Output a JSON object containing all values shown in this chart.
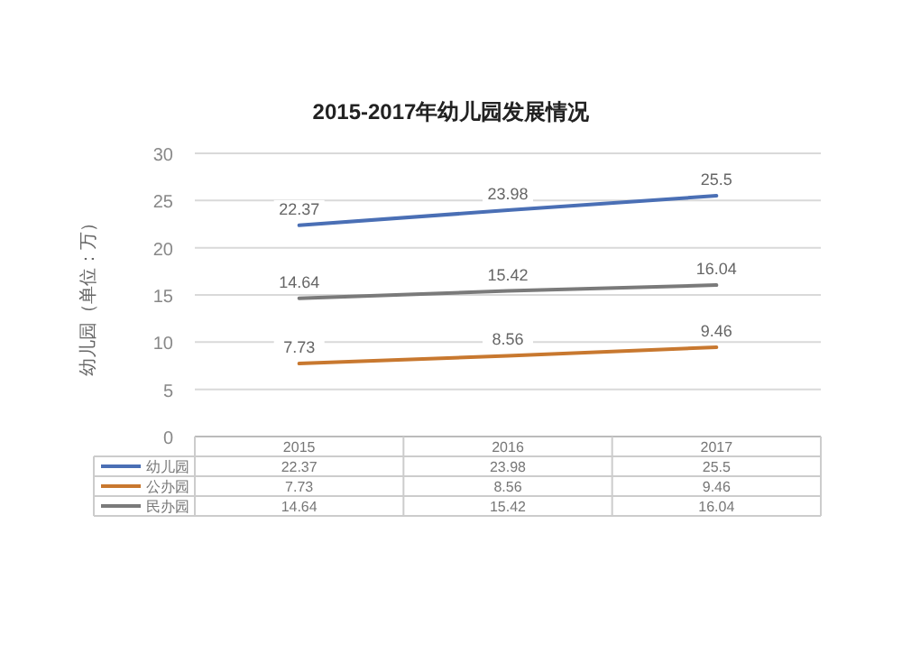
{
  "chart_data": {
    "type": "line",
    "title": "2015-2017年幼儿园发展情况",
    "ylabel": "幼儿园（单位：万）",
    "categories": [
      "2015",
      "2016",
      "2017"
    ],
    "series": [
      {
        "name": "幼儿园",
        "color": "#4a6fb5",
        "values": [
          22.37,
          23.98,
          25.5
        ],
        "value_labels": [
          "22.37",
          "23.98",
          "25.5"
        ]
      },
      {
        "name": "公办园",
        "color": "#c8782f",
        "values": [
          7.73,
          8.56,
          9.46
        ],
        "value_labels": [
          "7.73",
          "8.56",
          "9.46"
        ]
      },
      {
        "name": "民办园",
        "color": "#7a7a7a",
        "values": [
          14.64,
          15.42,
          16.04
        ],
        "value_labels": [
          "14.64",
          "15.42",
          "16.04"
        ]
      }
    ],
    "annotations": [
      "22.37",
      "23.98",
      "25.5",
      "7.73",
      "8.56",
      "9.46",
      "14.64",
      "15.42",
      "16.04"
    ],
    "ylim": [
      0,
      30
    ],
    "yticks": [
      0,
      5,
      10,
      15,
      20,
      25,
      30
    ],
    "grid": "y",
    "legend": "bottom",
    "data_labels": true
  }
}
